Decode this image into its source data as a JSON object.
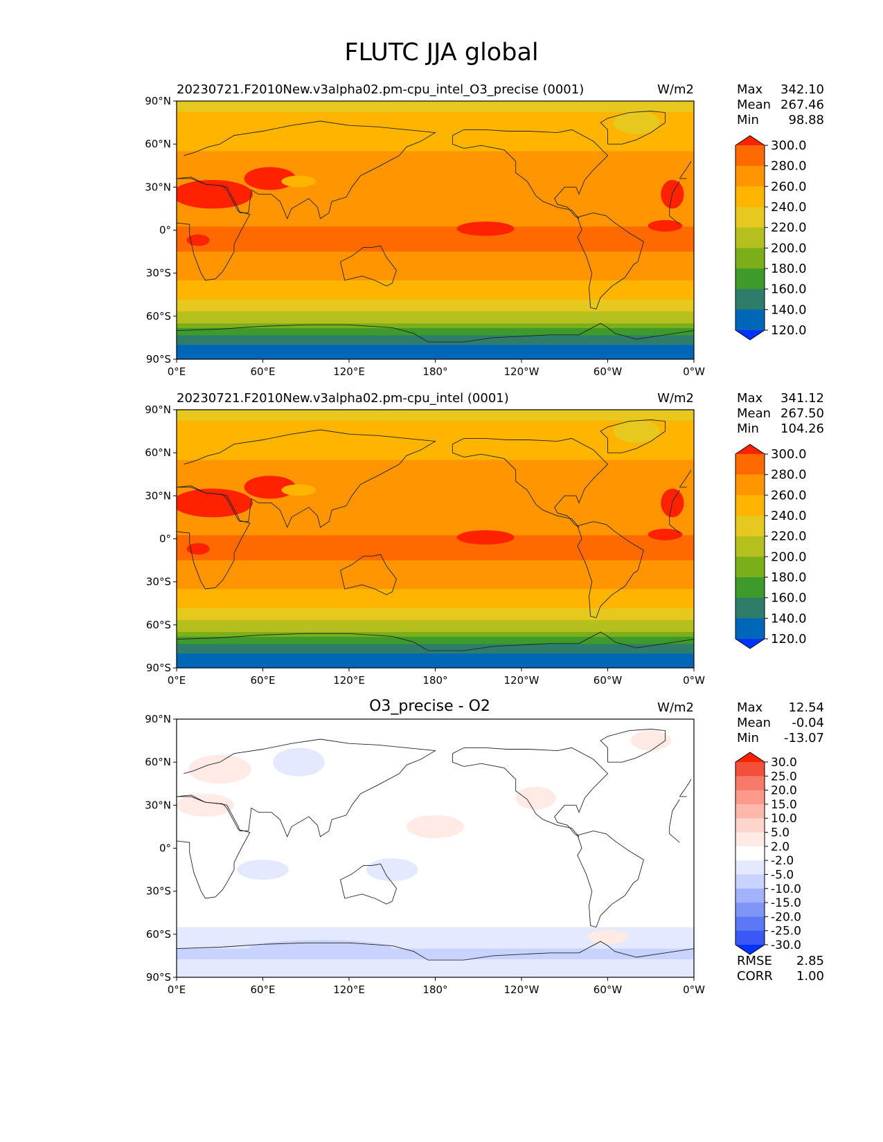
{
  "figure": {
    "title": "FLUTC JJA global"
  },
  "chart_data": [
    {
      "type": "heatmap",
      "title": "20230721.F2010New.v3alpha02.pm-cpu_intel_O3_precise (0001)",
      "units": "W/m2",
      "stats": {
        "max_label": "Max",
        "max": "342.10",
        "mean_label": "Mean",
        "mean": "267.46",
        "min_label": "Min",
        "min": "98.88"
      },
      "x_ticks": [
        "0°E",
        "60°E",
        "120°E",
        "180°",
        "120°W",
        "60°W",
        "0°W"
      ],
      "y_ticks": [
        "90°N",
        "60°N",
        "30°N",
        "0°",
        "30°S",
        "60°S",
        "90°S"
      ],
      "xlim": [
        0,
        360
      ],
      "ylim": [
        -90,
        90
      ],
      "colorbar": {
        "levels": [
          "300.0",
          "280.0",
          "260.0",
          "240.0",
          "220.0",
          "200.0",
          "180.0",
          "160.0",
          "140.0",
          "120.0"
        ],
        "colors": [
          "#ff2200",
          "#ff6a00",
          "#ff9500",
          "#ffb400",
          "#e6c81e",
          "#b5bf1d",
          "#7aaf1a",
          "#3e9a2a",
          "#2e7d6a",
          "#0067b8",
          "#0033ff"
        ]
      },
      "zonal_profile": [
        {
          "lat": 90,
          "value": 235
        },
        {
          "lat": 75,
          "value": 245
        },
        {
          "lat": 60,
          "value": 255
        },
        {
          "lat": 45,
          "value": 268
        },
        {
          "lat": 30,
          "value": 278
        },
        {
          "lat": 15,
          "value": 272
        },
        {
          "lat": 0,
          "value": 282
        },
        {
          "lat": -15,
          "value": 280
        },
        {
          "lat": -30,
          "value": 268
        },
        {
          "lat": -45,
          "value": 245
        },
        {
          "lat": -55,
          "value": 225
        },
        {
          "lat": -65,
          "value": 200
        },
        {
          "lat": -75,
          "value": 150
        },
        {
          "lat": -90,
          "value": 120
        }
      ]
    },
    {
      "type": "heatmap",
      "title": "20230721.F2010New.v3alpha02.pm-cpu_intel (0001)",
      "units": "W/m2",
      "stats": {
        "max_label": "Max",
        "max": "341.12",
        "mean_label": "Mean",
        "mean": "267.50",
        "min_label": "Min",
        "min": "104.26"
      },
      "x_ticks": [
        "0°E",
        "60°E",
        "120°E",
        "180°",
        "120°W",
        "60°W",
        "0°W"
      ],
      "y_ticks": [
        "90°N",
        "60°N",
        "30°N",
        "0°",
        "30°S",
        "60°S",
        "90°S"
      ],
      "xlim": [
        0,
        360
      ],
      "ylim": [
        -90,
        90
      ],
      "colorbar": {
        "levels": [
          "300.0",
          "280.0",
          "260.0",
          "240.0",
          "220.0",
          "200.0",
          "180.0",
          "160.0",
          "140.0",
          "120.0"
        ],
        "colors": [
          "#ff2200",
          "#ff6a00",
          "#ff9500",
          "#ffb400",
          "#e6c81e",
          "#b5bf1d",
          "#7aaf1a",
          "#3e9a2a",
          "#2e7d6a",
          "#0067b8",
          "#0033ff"
        ]
      },
      "zonal_profile": [
        {
          "lat": 90,
          "value": 235
        },
        {
          "lat": 75,
          "value": 245
        },
        {
          "lat": 60,
          "value": 255
        },
        {
          "lat": 45,
          "value": 268
        },
        {
          "lat": 30,
          "value": 278
        },
        {
          "lat": 15,
          "value": 272
        },
        {
          "lat": 0,
          "value": 282
        },
        {
          "lat": -15,
          "value": 280
        },
        {
          "lat": -30,
          "value": 268
        },
        {
          "lat": -45,
          "value": 245
        },
        {
          "lat": -55,
          "value": 225
        },
        {
          "lat": -65,
          "value": 200
        },
        {
          "lat": -75,
          "value": 150
        },
        {
          "lat": -90,
          "value": 125
        }
      ]
    },
    {
      "type": "heatmap",
      "title": "O3_precise - O2",
      "units": "W/m2",
      "stats": {
        "max_label": "Max",
        "max": "12.54",
        "mean_label": "Mean",
        "mean": "-0.04",
        "min_label": "Min",
        "min": "-13.07"
      },
      "extra_stats": {
        "rmse_label": "RMSE",
        "rmse": "2.85",
        "corr_label": "CORR",
        "corr": "1.00"
      },
      "x_ticks": [
        "0°E",
        "60°E",
        "120°E",
        "180°",
        "120°W",
        "60°W",
        "0°W"
      ],
      "y_ticks": [
        "90°N",
        "60°N",
        "30°N",
        "0°",
        "30°S",
        "60°S",
        "90°S"
      ],
      "xlim": [
        0,
        360
      ],
      "ylim": [
        -90,
        90
      ],
      "colorbar": {
        "levels": [
          "30.0",
          "25.0",
          "20.0",
          "15.0",
          "10.0",
          "5.0",
          "2.0",
          "-2.0",
          "-5.0",
          "-10.0",
          "-15.0",
          "-20.0",
          "-25.0",
          "-30.0"
        ],
        "colors": [
          "#ff2200",
          "#f2503a",
          "#f77a68",
          "#fb9a8a",
          "#fdb8ab",
          "#fed5cc",
          "#ffeae5",
          "#ffffff",
          "#e4e9ff",
          "#c9d3ff",
          "#a3b3fb",
          "#8096f6",
          "#5c78f4",
          "#3958f5",
          "#0033ff"
        ]
      },
      "zonal_profile": [
        {
          "lat": 90,
          "value": 0
        },
        {
          "lat": 75,
          "value": 1
        },
        {
          "lat": 60,
          "value": 0
        },
        {
          "lat": 45,
          "value": 1
        },
        {
          "lat": 30,
          "value": 0
        },
        {
          "lat": 15,
          "value": 0
        },
        {
          "lat": 0,
          "value": 0
        },
        {
          "lat": -15,
          "value": 0
        },
        {
          "lat": -30,
          "value": 0
        },
        {
          "lat": -45,
          "value": 0
        },
        {
          "lat": -55,
          "value": -2
        },
        {
          "lat": -65,
          "value": -4
        },
        {
          "lat": -75,
          "value": -6
        },
        {
          "lat": -90,
          "value": -2
        }
      ]
    }
  ]
}
